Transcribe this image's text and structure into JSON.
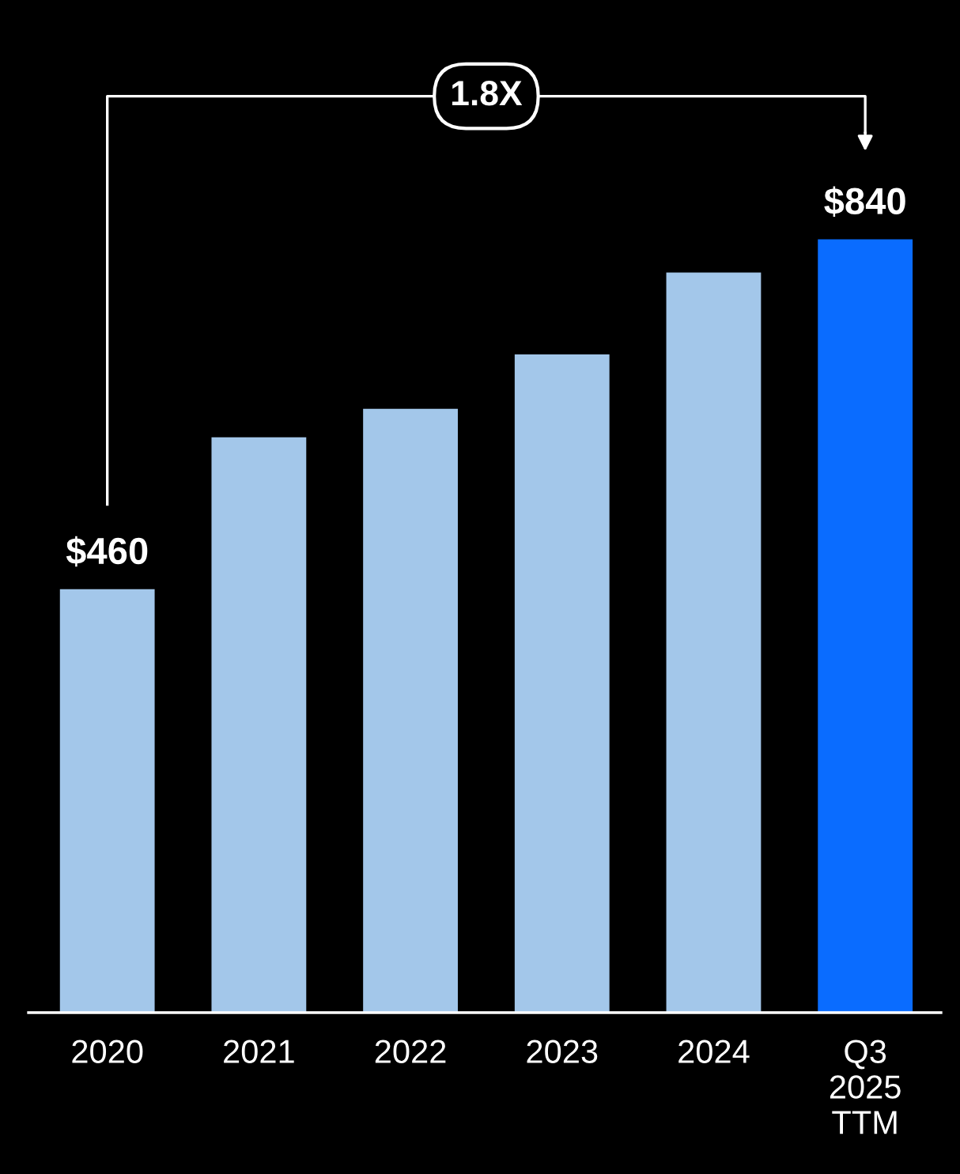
{
  "chart_data": {
    "type": "bar",
    "categories": [
      "2020",
      "2021",
      "2022",
      "2023",
      "2024",
      "Q3\n2025\nTTM"
    ],
    "values": [
      460,
      625,
      656,
      715,
      804,
      840
    ],
    "colors": [
      "#a3c7ea",
      "#a3c7ea",
      "#a3c7ea",
      "#a3c7ea",
      "#a3c7ea",
      "#0a6cff"
    ],
    "value_labels": [
      "$460",
      null,
      null,
      null,
      null,
      "$840"
    ],
    "ylim": [
      0,
      1100
    ],
    "tick_labels": "x",
    "grid": false,
    "annotations": [
      "1.8X"
    ]
  }
}
